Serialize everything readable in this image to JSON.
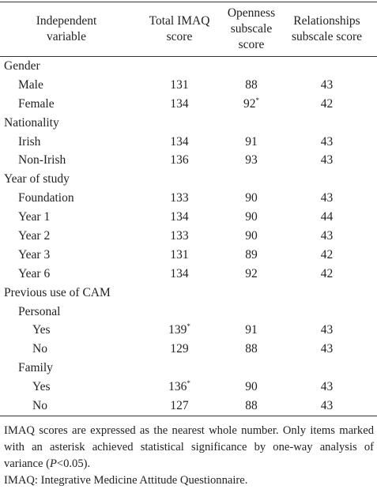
{
  "table": {
    "header": [
      [
        "Independent",
        "variable"
      ],
      [
        "Total IMAQ",
        "score"
      ],
      [
        "Openness",
        "subscale",
        "score"
      ],
      [
        "Relationships",
        "subscale score"
      ]
    ],
    "groups": [
      {
        "label": "Gender",
        "rows": [
          {
            "label": "Male",
            "values": [
              131,
              88,
              43
            ]
          },
          {
            "label": "Female",
            "values": [
              134,
              {
                "value": 92,
                "mark": "*"
              },
              42
            ]
          }
        ]
      },
      {
        "label": "Nationality",
        "rows": [
          {
            "label": "Irish",
            "values": [
              134,
              91,
              43
            ]
          },
          {
            "label": "Non-Irish",
            "values": [
              136,
              93,
              43
            ]
          }
        ]
      },
      {
        "label": "Year of study",
        "rows": [
          {
            "label": "Foundation",
            "values": [
              133,
              90,
              43
            ]
          },
          {
            "label": "Year 1",
            "values": [
              134,
              90,
              44
            ]
          },
          {
            "label": "Year 2",
            "values": [
              133,
              90,
              43
            ]
          },
          {
            "label": "Year 3",
            "values": [
              131,
              89,
              42
            ]
          },
          {
            "label": "Year 6",
            "values": [
              134,
              92,
              42
            ]
          }
        ]
      },
      {
        "label": "Previous use of CAM",
        "subgroups": [
          {
            "label": "Personal",
            "rows": [
              {
                "label": "Yes",
                "values": [
                  {
                    "value": 139,
                    "mark": "*"
                  },
                  91,
                  43
                ]
              },
              {
                "label": "No",
                "values": [
                  129,
                  88,
                  43
                ]
              }
            ]
          },
          {
            "label": "Family",
            "rows": [
              {
                "label": "Yes",
                "values": [
                  {
                    "value": 136,
                    "mark": "*"
                  },
                  90,
                  43
                ]
              },
              {
                "label": "No",
                "values": [
                  127,
                  88,
                  43
                ]
              }
            ]
          }
        ]
      }
    ]
  },
  "notes": [
    {
      "before": "IMAQ scores are expressed as the nearest whole number. Only items marked with an asterisk achieved statistical significance by one-way analysis of variance (",
      "italic": "P",
      "after": "<0.05)."
    },
    {
      "before": "IMAQ: Integrative Medicine Attitude Questionnaire."
    }
  ]
}
